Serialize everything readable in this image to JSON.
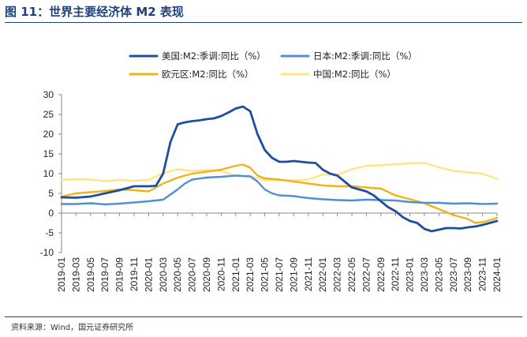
{
  "figure_title": "图 11：世界主要经济体 M2 表现",
  "source": "资料来源：Wind，国元证券研究所",
  "chart_data": {
    "type": "line",
    "title": "",
    "xlabel": "",
    "ylabel": "",
    "ylim": [
      -10,
      30
    ],
    "yticks": [
      -10,
      -5,
      0,
      5,
      10,
      15,
      20,
      25,
      30
    ],
    "x_tick_labels": [
      "2019-01",
      "2019-03",
      "2019-05",
      "2019-07",
      "2019-09",
      "2019-11",
      "2020-01",
      "2020-03",
      "2020-05",
      "2020-07",
      "2020-09",
      "2020-11",
      "2021-01",
      "2021-03",
      "2021-05",
      "2021-07",
      "2021-09",
      "2021-11",
      "2022-01",
      "2022-03",
      "2022-05",
      "2022-07",
      "2022-09",
      "2022-11",
      "2023-01",
      "2023-03",
      "2023-05",
      "2023-07",
      "2023-09",
      "2023-11",
      "2024-01"
    ],
    "grid": false,
    "legend_position": "top",
    "series": [
      {
        "name": "美国:M2:季调:同比（%）",
        "color": "#1f4e9c",
        "width": 2.8,
        "points": [
          [
            "2019-01",
            4.0
          ],
          [
            "2019-03",
            3.9
          ],
          [
            "2019-05",
            4.2
          ],
          [
            "2019-07",
            5.0
          ],
          [
            "2019-09",
            5.8
          ],
          [
            "2019-11",
            6.8
          ],
          [
            "2020-01",
            6.8
          ],
          [
            "2020-02",
            6.9
          ],
          [
            "2020-03",
            10.0
          ],
          [
            "2020-04",
            18.0
          ],
          [
            "2020-05",
            22.5
          ],
          [
            "2020-06",
            23.0
          ],
          [
            "2020-07",
            23.3
          ],
          [
            "2020-08",
            23.5
          ],
          [
            "2020-09",
            23.8
          ],
          [
            "2020-10",
            24.0
          ],
          [
            "2020-11",
            24.6
          ],
          [
            "2020-12",
            25.5
          ],
          [
            "2021-01",
            26.5
          ],
          [
            "2021-02",
            27.0
          ],
          [
            "2021-03",
            25.8
          ],
          [
            "2021-04",
            20.0
          ],
          [
            "2021-05",
            16.0
          ],
          [
            "2021-06",
            14.0
          ],
          [
            "2021-07",
            13.0
          ],
          [
            "2021-08",
            13.0
          ],
          [
            "2021-09",
            13.2
          ],
          [
            "2021-10",
            13.0
          ],
          [
            "2021-11",
            12.8
          ],
          [
            "2021-12",
            12.7
          ],
          [
            "2022-01",
            11.0
          ],
          [
            "2022-02",
            10.0
          ],
          [
            "2022-03",
            9.5
          ],
          [
            "2022-04",
            8.0
          ],
          [
            "2022-05",
            6.5
          ],
          [
            "2022-06",
            6.0
          ],
          [
            "2022-07",
            5.5
          ],
          [
            "2022-08",
            4.5
          ],
          [
            "2022-09",
            3.0
          ],
          [
            "2022-10",
            1.5
          ],
          [
            "2022-11",
            0.5
          ],
          [
            "2022-12",
            -1.0
          ],
          [
            "2023-01",
            -2.0
          ],
          [
            "2023-02",
            -2.5
          ],
          [
            "2023-03",
            -4.0
          ],
          [
            "2023-04",
            -4.6
          ],
          [
            "2023-05",
            -4.2
          ],
          [
            "2023-06",
            -3.8
          ],
          [
            "2023-07",
            -3.8
          ],
          [
            "2023-08",
            -3.9
          ],
          [
            "2023-09",
            -3.6
          ],
          [
            "2023-10",
            -3.4
          ],
          [
            "2023-11",
            -3.0
          ],
          [
            "2023-12",
            -2.5
          ],
          [
            "2024-01",
            -2.0
          ]
        ]
      },
      {
        "name": "日本:M2:季调:同比（%）",
        "color": "#4e8fd6",
        "width": 2.4,
        "points": [
          [
            "2019-01",
            2.3
          ],
          [
            "2019-03",
            2.3
          ],
          [
            "2019-05",
            2.5
          ],
          [
            "2019-07",
            2.2
          ],
          [
            "2019-09",
            2.4
          ],
          [
            "2019-11",
            2.7
          ],
          [
            "2020-01",
            3.0
          ],
          [
            "2020-03",
            3.4
          ],
          [
            "2020-05",
            6.0
          ],
          [
            "2020-06",
            7.5
          ],
          [
            "2020-07",
            8.5
          ],
          [
            "2020-09",
            9.0
          ],
          [
            "2020-11",
            9.2
          ],
          [
            "2021-01",
            9.5
          ],
          [
            "2021-03",
            9.3
          ],
          [
            "2021-04",
            8.0
          ],
          [
            "2021-05",
            6.0
          ],
          [
            "2021-06",
            5.0
          ],
          [
            "2021-07",
            4.5
          ],
          [
            "2021-09",
            4.3
          ],
          [
            "2021-11",
            3.8
          ],
          [
            "2022-01",
            3.5
          ],
          [
            "2022-03",
            3.3
          ],
          [
            "2022-05",
            3.2
          ],
          [
            "2022-07",
            3.4
          ],
          [
            "2022-09",
            3.3
          ],
          [
            "2022-11",
            3.2
          ],
          [
            "2023-01",
            2.8
          ],
          [
            "2023-03",
            2.6
          ],
          [
            "2023-05",
            2.6
          ],
          [
            "2023-07",
            2.4
          ],
          [
            "2023-09",
            2.5
          ],
          [
            "2023-11",
            2.3
          ],
          [
            "2024-01",
            2.4
          ]
        ]
      },
      {
        "name": "欧元区:M2:同比（%）",
        "color": "#f2b21b",
        "width": 2.4,
        "points": [
          [
            "2019-01",
            4.2
          ],
          [
            "2019-03",
            5.0
          ],
          [
            "2019-05",
            5.3
          ],
          [
            "2019-07",
            5.6
          ],
          [
            "2019-09",
            6.0
          ],
          [
            "2019-11",
            5.8
          ],
          [
            "2020-01",
            5.5
          ],
          [
            "2020-03",
            7.5
          ],
          [
            "2020-05",
            9.0
          ],
          [
            "2020-07",
            10.0
          ],
          [
            "2020-09",
            10.5
          ],
          [
            "2020-11",
            11.0
          ],
          [
            "2021-01",
            12.0
          ],
          [
            "2021-02",
            12.3
          ],
          [
            "2021-03",
            11.5
          ],
          [
            "2021-04",
            9.5
          ],
          [
            "2021-05",
            8.8
          ],
          [
            "2021-07",
            8.5
          ],
          [
            "2021-09",
            8.0
          ],
          [
            "2021-11",
            7.5
          ],
          [
            "2022-01",
            7.0
          ],
          [
            "2022-03",
            6.8
          ],
          [
            "2022-05",
            6.8
          ],
          [
            "2022-07",
            6.5
          ],
          [
            "2022-09",
            6.2
          ],
          [
            "2022-11",
            4.5
          ],
          [
            "2023-01",
            3.5
          ],
          [
            "2023-03",
            2.5
          ],
          [
            "2023-05",
            1.0
          ],
          [
            "2023-07",
            -0.5
          ],
          [
            "2023-09",
            -1.5
          ],
          [
            "2023-10",
            -2.5
          ],
          [
            "2023-11",
            -2.3
          ],
          [
            "2023-12",
            -1.8
          ],
          [
            "2024-01",
            -1.2
          ]
        ]
      },
      {
        "name": "中国:M2:同比（%）",
        "color": "#fde58a",
        "width": 2.4,
        "points": [
          [
            "2019-01",
            8.4
          ],
          [
            "2019-03",
            8.6
          ],
          [
            "2019-05",
            8.5
          ],
          [
            "2019-07",
            8.1
          ],
          [
            "2019-09",
            8.4
          ],
          [
            "2019-11",
            8.2
          ],
          [
            "2020-01",
            8.4
          ],
          [
            "2020-03",
            10.1
          ],
          [
            "2020-05",
            11.1
          ],
          [
            "2020-07",
            10.7
          ],
          [
            "2020-09",
            10.9
          ],
          [
            "2020-11",
            10.7
          ],
          [
            "2021-01",
            9.4
          ],
          [
            "2021-03",
            9.4
          ],
          [
            "2021-05",
            8.3
          ],
          [
            "2021-07",
            8.3
          ],
          [
            "2021-09",
            8.3
          ],
          [
            "2021-11",
            8.5
          ],
          [
            "2022-01",
            9.8
          ],
          [
            "2022-03",
            9.7
          ],
          [
            "2022-05",
            11.1
          ],
          [
            "2022-07",
            12.0
          ],
          [
            "2022-09",
            12.1
          ],
          [
            "2022-11",
            12.4
          ],
          [
            "2023-01",
            12.6
          ],
          [
            "2023-03",
            12.7
          ],
          [
            "2023-05",
            11.6
          ],
          [
            "2023-07",
            10.7
          ],
          [
            "2023-09",
            10.3
          ],
          [
            "2023-11",
            10.0
          ],
          [
            "2024-01",
            8.7
          ]
        ]
      }
    ]
  }
}
